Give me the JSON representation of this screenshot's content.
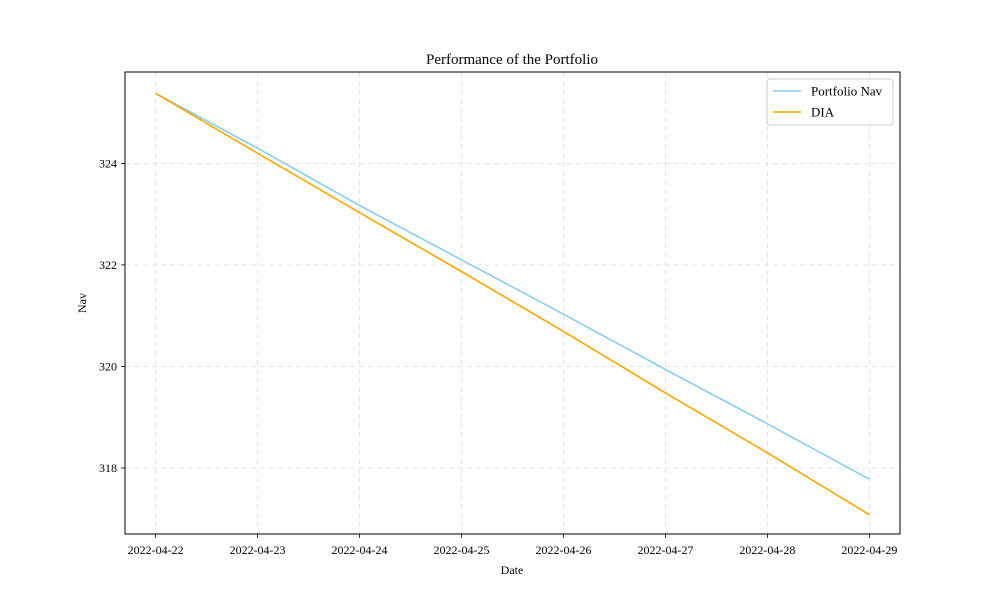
{
  "chart_data": {
    "type": "line",
    "title": "Performance of the Portfolio",
    "xlabel": "Date",
    "ylabel": "Nav",
    "x": [
      "2022-04-22",
      "2022-04-23",
      "2022-04-24",
      "2022-04-25",
      "2022-04-26",
      "2022-04-27",
      "2022-04-28",
      "2022-04-29"
    ],
    "xlim": [
      "2022-04-21 16:48",
      "2022-04-29 07:12"
    ],
    "ylim": [
      316.7,
      325.8
    ],
    "yticks": [
      318,
      320,
      322,
      324
    ],
    "grid": true,
    "legend_position": "top-right",
    "series": [
      {
        "name": "Portfolio Nav",
        "color": "#87ceeb",
        "values": [
          325.38,
          324.3,
          323.17,
          322.1,
          321.03,
          319.94,
          318.87,
          317.78
        ]
      },
      {
        "name": "DIA",
        "color": "#ffa500",
        "values": [
          325.38,
          324.2,
          323.03,
          321.87,
          320.69,
          319.48,
          318.3,
          317.08
        ]
      }
    ]
  }
}
